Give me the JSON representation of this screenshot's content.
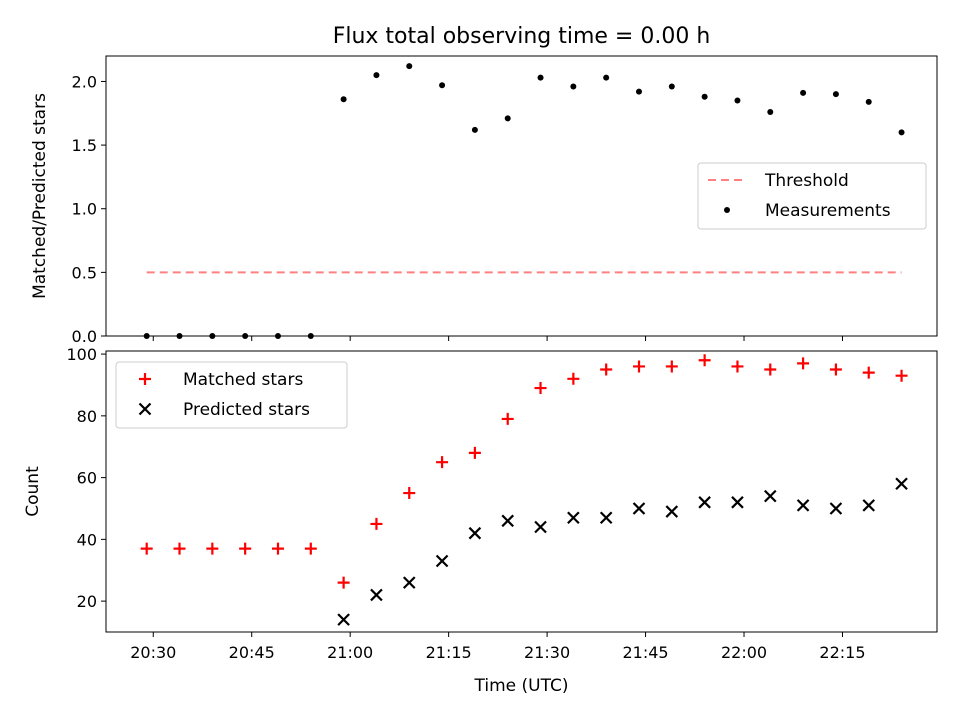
{
  "chart_data": {
    "title": "Flux total observing time = 0.00 h",
    "xlabel": "Time (UTC)",
    "x_tick_labels": [
      "20:30",
      "20:45",
      "21:00",
      "21:15",
      "21:30",
      "21:45",
      "22:00",
      "22:15"
    ],
    "x_tick_minutes": [
      0,
      15,
      30,
      45,
      60,
      75,
      90,
      105
    ],
    "xlim_minutes": [
      -7.2,
      119.4
    ],
    "x_axis_origin": "20:30",
    "panels": [
      {
        "type": "scatter",
        "ylabel": "Matched/Predicted stars",
        "ylim": [
          0,
          2.2
        ],
        "y_ticks": [
          0.0,
          0.5,
          1.0,
          1.5,
          2.0
        ],
        "y_tick_labels": [
          "0.0",
          "0.5",
          "1.0",
          "1.5",
          "2.0"
        ],
        "legend_position": "center-right",
        "series": [
          {
            "name": "Threshold",
            "type": "dashed-line",
            "color": "#ff8080",
            "x": [
              -1,
              114
            ],
            "y": [
              0.5,
              0.5
            ]
          },
          {
            "name": "Measurements",
            "type": "scatter",
            "marker": "dot",
            "color": "#000000",
            "x": [
              -1,
              4,
              9,
              14,
              19,
              24,
              29,
              34,
              39,
              44,
              49,
              54,
              59,
              64,
              69,
              74,
              79,
              84,
              89,
              94,
              99,
              104,
              109,
              114
            ],
            "y": [
              0,
              0,
              0,
              0,
              0,
              0,
              1.86,
              2.05,
              2.12,
              1.97,
              1.62,
              1.71,
              2.03,
              1.96,
              2.03,
              1.92,
              1.96,
              1.88,
              1.85,
              1.76,
              1.91,
              1.9,
              1.84,
              1.6
            ]
          }
        ]
      },
      {
        "type": "scatter",
        "ylabel": "Count",
        "ylim": [
          10,
          101
        ],
        "y_ticks": [
          20,
          40,
          60,
          80,
          100
        ],
        "y_tick_labels": [
          "20",
          "40",
          "60",
          "80",
          "100"
        ],
        "legend_position": "upper-left",
        "series": [
          {
            "name": "Matched stars",
            "type": "scatter",
            "marker": "plus",
            "color": "#ff0000",
            "x": [
              -1,
              4,
              9,
              14,
              19,
              24,
              29,
              34,
              39,
              44,
              49,
              54,
              59,
              64,
              69,
              74,
              79,
              84,
              89,
              94,
              99,
              104,
              109,
              114
            ],
            "y": [
              37,
              37,
              37,
              37,
              37,
              37,
              26,
              45,
              55,
              65,
              68,
              79,
              89,
              92,
              95,
              96,
              96,
              98,
              96,
              95,
              97,
              95,
              94,
              93
            ]
          },
          {
            "name": "Predicted stars",
            "type": "scatter",
            "marker": "x",
            "color": "#000000",
            "x": [
              29,
              34,
              39,
              44,
              49,
              54,
              59,
              64,
              69,
              74,
              79,
              84,
              89,
              94,
              99,
              104,
              109,
              114
            ],
            "y": [
              14,
              22,
              26,
              33,
              42,
              46,
              44,
              47,
              47,
              50,
              49,
              52,
              52,
              54,
              51,
              50,
              51,
              58
            ]
          }
        ]
      }
    ]
  }
}
